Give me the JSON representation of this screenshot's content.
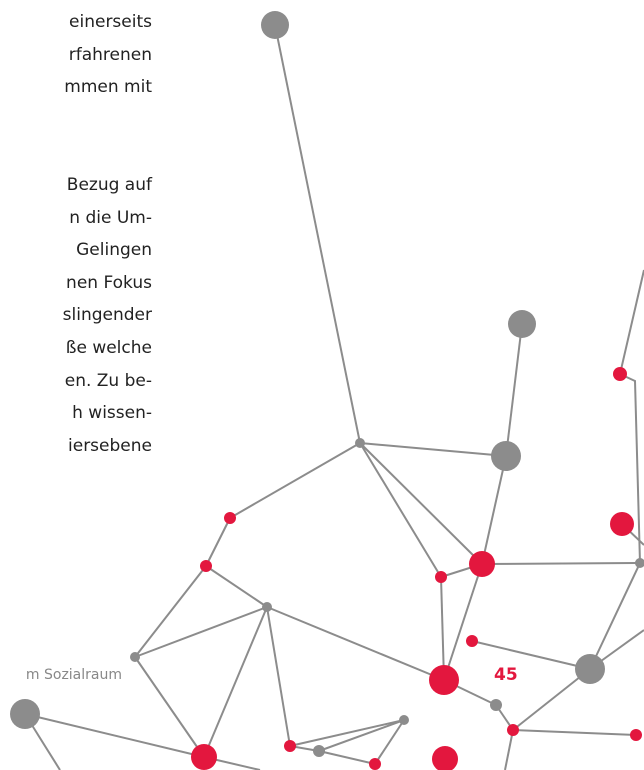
{
  "body_text": {
    "paragraphs": [
      [
        "einerseits",
        "rfahrenen",
        "mmen mit"
      ],
      [
        "Bezug auf",
        "n die Um-",
        "Gelingen",
        "nen Fokus",
        "slingender",
        "ße welche",
        "en. Zu be-",
        "h wissen-",
        "iersebene"
      ]
    ]
  },
  "footer": {
    "running_title": "m Sozialraum",
    "page_number": "45"
  }
}
